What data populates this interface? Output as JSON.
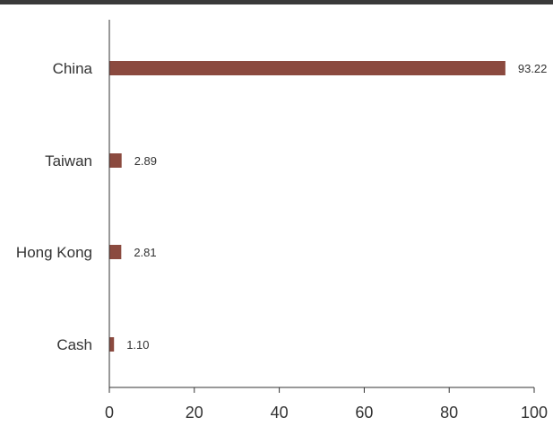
{
  "chart_data": {
    "type": "bar",
    "orientation": "horizontal",
    "categories": [
      "China",
      "Taiwan",
      "Hong Kong",
      "Cash"
    ],
    "values": [
      93.22,
      2.89,
      2.81,
      1.1
    ],
    "value_labels": [
      "93.22",
      "2.89",
      "2.81",
      "1.10"
    ],
    "xlim": [
      0,
      100
    ],
    "xticks": [
      0,
      20,
      40,
      60,
      80,
      100
    ],
    "grid": false,
    "legend": "none",
    "title": "",
    "xlabel": "",
    "ylabel": ""
  },
  "colors": {
    "bar": "#8b4a3f",
    "axis": "#333333",
    "top_rule": "#3a3a3a"
  }
}
